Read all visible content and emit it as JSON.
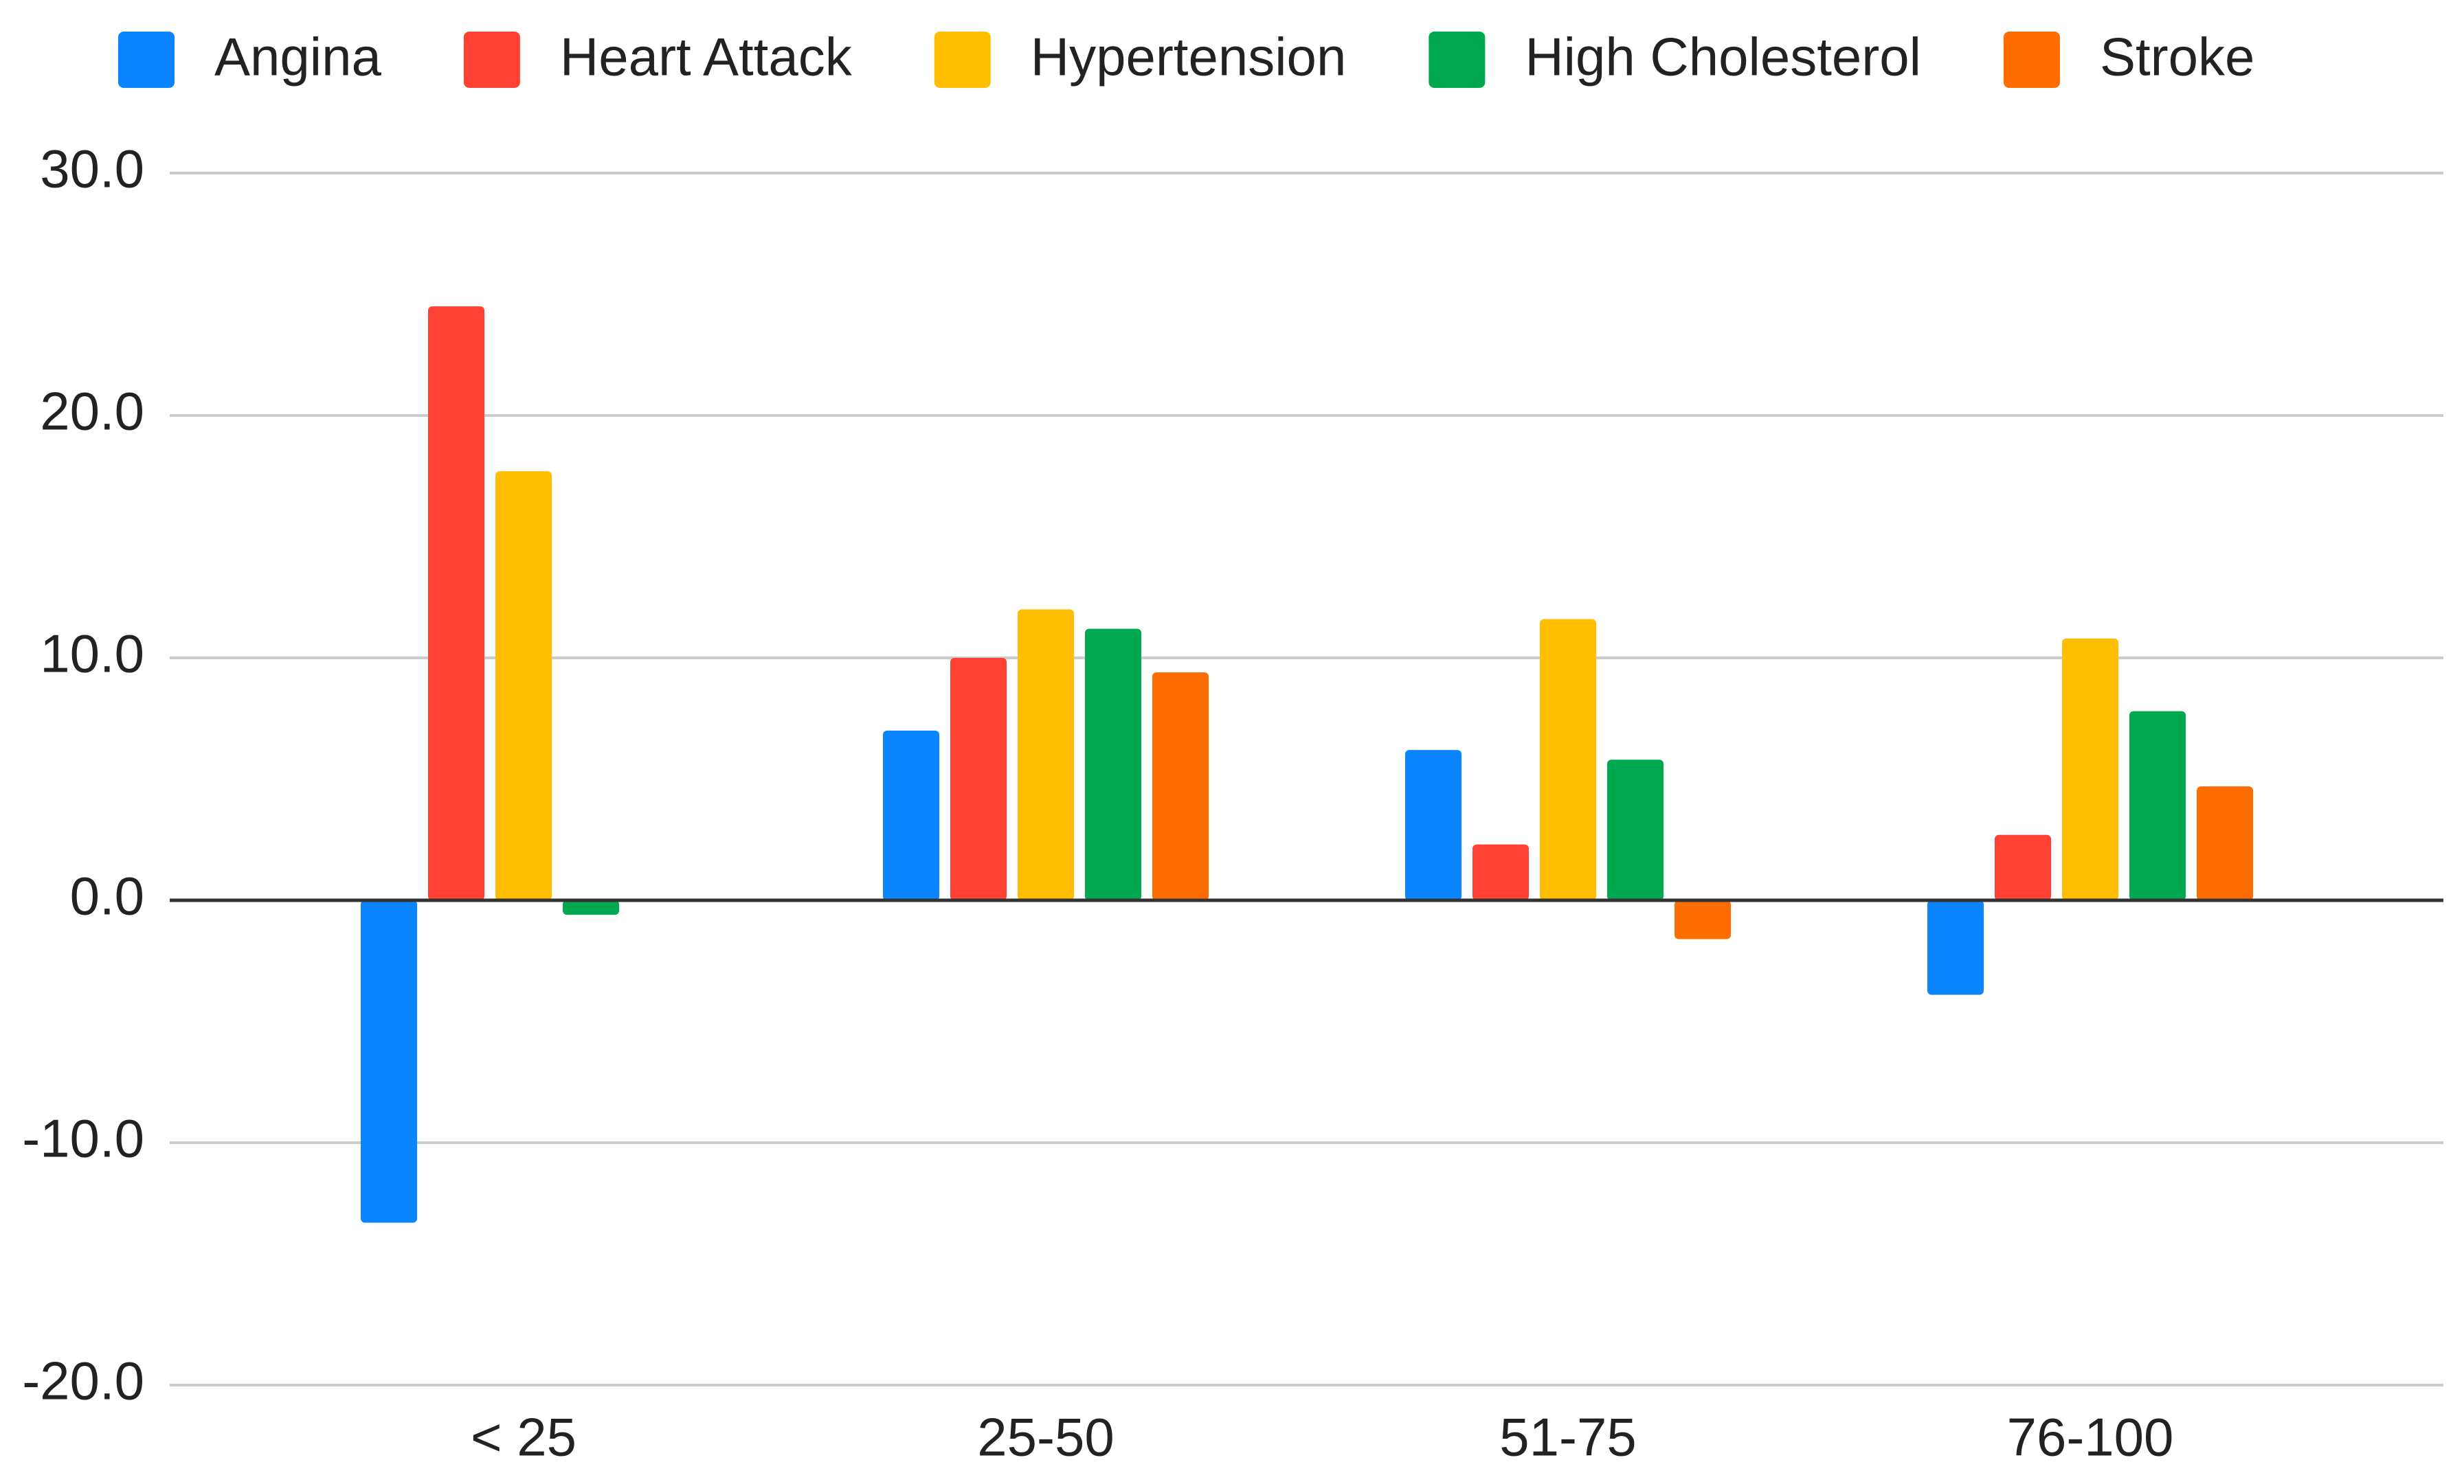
{
  "chart_data": {
    "type": "bar",
    "categories": [
      "< 25",
      "25-50",
      "51-75",
      "76-100"
    ],
    "series": [
      {
        "name": "Angina",
        "color": "#0a84ff",
        "values": [
          -13.3,
          7.0,
          6.2,
          -3.9
        ]
      },
      {
        "name": "Heart Attack",
        "color": "#ff4133",
        "values": [
          24.5,
          10.0,
          2.3,
          2.7
        ]
      },
      {
        "name": "Hypertension",
        "color": "#ffbf00",
        "values": [
          17.7,
          12.0,
          11.6,
          10.8
        ]
      },
      {
        "name": "High Cholesterol",
        "color": "#00a94f",
        "values": [
          -0.6,
          11.2,
          5.8,
          7.8
        ]
      },
      {
        "name": "Stroke",
        "color": "#ff6d00",
        "values": [
          null,
          9.4,
          -1.6,
          4.7
        ]
      }
    ],
    "ylim": [
      -20,
      30
    ],
    "yticks": [
      {
        "value": -20,
        "label": "-20.0"
      },
      {
        "value": -10,
        "label": "-10.0"
      },
      {
        "value": 0,
        "label": "0.0"
      },
      {
        "value": 10,
        "label": "10.0"
      },
      {
        "value": 20,
        "label": "20.0"
      },
      {
        "value": 30,
        "label": "30.0"
      }
    ],
    "grid": true,
    "legend": "top"
  }
}
